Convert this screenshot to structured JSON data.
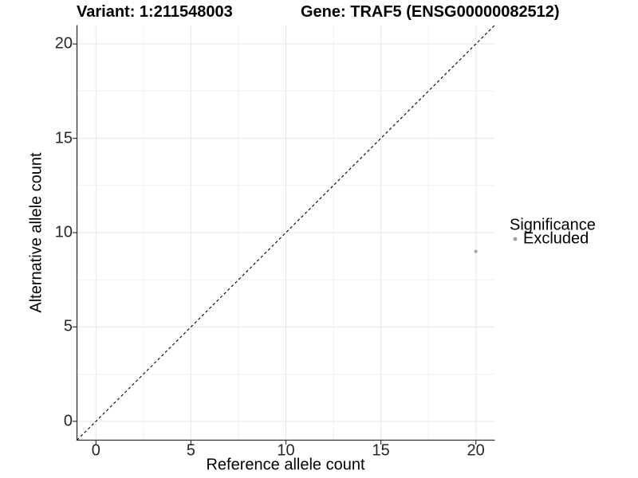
{
  "titles": {
    "left": "Variant: 1:211548003",
    "right": "Gene: TRAF5 (ENSG00000082512)"
  },
  "chart_data": {
    "type": "scatter",
    "title": "Variant: 1:211548003   Gene: TRAF5 (ENSG00000082512)",
    "xlabel": "Reference allele count",
    "ylabel": "Alternative allele count",
    "xlim": [
      -1,
      21
    ],
    "ylim": [
      -1,
      21
    ],
    "x_ticks": [
      0,
      5,
      10,
      15,
      20
    ],
    "y_ticks": [
      0,
      5,
      10,
      15,
      20
    ],
    "minor_grid_step": 2.5,
    "grid": true,
    "series": [
      {
        "name": "Excluded",
        "color": "#a3a3a3",
        "points": [
          [
            20,
            9
          ]
        ]
      }
    ],
    "reference_line": {
      "type": "identity",
      "equation": "y = x",
      "style": "dashed",
      "color": "#000000"
    },
    "legend": {
      "title": "Significance",
      "position": "right",
      "entries": [
        {
          "label": "Excluded",
          "color": "#a3a3a3",
          "marker": "dot"
        }
      ]
    }
  },
  "colors": {
    "background": "#ffffff",
    "grid_major": "#e7e7e7",
    "grid_minor": "#f0f0f0",
    "axis_line": "#333333",
    "tick_text": "#262626",
    "point": "#a3a3a3"
  }
}
